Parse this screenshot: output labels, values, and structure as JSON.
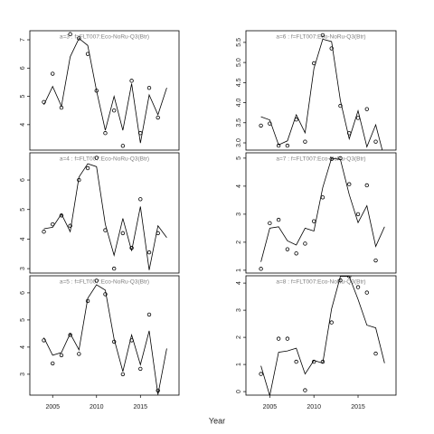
{
  "x_label": "Year",
  "chart_data": [
    {
      "type": "line",
      "title": "a=3  :  f=FLT007:Eco-NoRu-Q3(Btr)",
      "x": [
        2004,
        2005,
        2006,
        2007,
        2008,
        2009,
        2010,
        2011,
        2012,
        2013,
        2014,
        2015,
        2016,
        2017,
        2018
      ],
      "xlim": [
        2002.4,
        2019.4
      ],
      "ylim": [
        3.1,
        7.32
      ],
      "yticks": [
        4,
        5,
        6,
        7
      ],
      "series": [
        {
          "mode": "markers",
          "color": "#000000",
          "values": [
            4.8,
            5.8,
            4.6,
            7.2,
            7.05,
            6.5,
            5.2,
            3.7,
            4.5,
            3.25,
            5.55,
            3.7,
            5.3,
            4.25,
            null
          ]
        },
        {
          "mode": "line",
          "color": "#000000",
          "values": [
            4.7,
            5.35,
            4.65,
            6.4,
            7.05,
            6.8,
            5.2,
            3.8,
            5.0,
            3.8,
            5.45,
            3.35,
            5.05,
            4.35,
            5.3
          ]
        }
      ]
    },
    {
      "type": "line",
      "title": "a=4  :  f=FLT007:Eco-NoRu-Q3(Btr)",
      "x": [
        2004,
        2005,
        2006,
        2007,
        2008,
        2009,
        2010,
        2011,
        2012,
        2013,
        2014,
        2015,
        2016,
        2017,
        2018
      ],
      "xlim": [
        2002.4,
        2019.4
      ],
      "ylim": [
        2.85,
        6.92
      ],
      "yticks": [
        3,
        4,
        5,
        6
      ],
      "series": [
        {
          "mode": "markers",
          "color": "#000000",
          "values": [
            4.25,
            4.5,
            4.8,
            4.45,
            6.0,
            6.4,
            6.75,
            4.3,
            3.0,
            4.2,
            3.7,
            5.35,
            3.55,
            4.2,
            null
          ]
        },
        {
          "mode": "line",
          "color": "#000000",
          "values": [
            4.35,
            4.4,
            4.85,
            4.25,
            6.1,
            6.55,
            6.45,
            4.5,
            3.45,
            4.7,
            3.6,
            5.1,
            2.95,
            4.45,
            4.05
          ]
        }
      ]
    },
    {
      "type": "line",
      "title": "a=5  :  f=FLT007:Eco-NoRu-Q3(Btr)",
      "x": [
        2004,
        2005,
        2006,
        2007,
        2008,
        2009,
        2010,
        2011,
        2012,
        2013,
        2014,
        2015,
        2016,
        2017,
        2018
      ],
      "xlim": [
        2002.4,
        2019.4
      ],
      "xticks": [
        2005,
        2010,
        2015
      ],
      "ylim": [
        2.23,
        6.63
      ],
      "yticks": [
        3,
        4,
        5,
        6
      ],
      "series": [
        {
          "mode": "markers",
          "color": "#000000",
          "values": [
            4.25,
            3.4,
            3.7,
            4.45,
            3.75,
            5.7,
            6.45,
            5.95,
            4.2,
            3.0,
            4.25,
            3.2,
            5.2,
            2.4,
            null
          ]
        },
        {
          "mode": "line",
          "color": "#000000",
          "values": [
            4.35,
            3.7,
            3.8,
            4.5,
            3.9,
            5.8,
            6.3,
            6.1,
            4.3,
            3.1,
            4.45,
            3.35,
            4.6,
            2.25,
            3.95
          ]
        }
      ]
    },
    {
      "type": "line",
      "title": "a=6  :  f=FLT007:Eco-NoRu-Q3(Btr)",
      "x": [
        2004,
        2005,
        2006,
        2007,
        2008,
        2009,
        2010,
        2011,
        2012,
        2013,
        2014,
        2015,
        2016,
        2017,
        2018
      ],
      "xlim": [
        2002.3,
        2019.3
      ],
      "ylim": [
        2.82,
        5.79
      ],
      "yticks": [
        {
          "value": 3,
          "label": "3.0"
        },
        3.5,
        {
          "value": 4,
          "label": "4.0"
        },
        4.5,
        {
          "value": 5,
          "label": "5.0"
        },
        5.5
      ],
      "series": [
        {
          "mode": "markers",
          "color": "#000000",
          "values": [
            3.43,
            3.48,
            2.93,
            2.93,
            3.58,
            3.03,
            4.98,
            5.68,
            5.35,
            3.92,
            3.24,
            3.62,
            3.84,
            3.03,
            null
          ]
        },
        {
          "mode": "line",
          "color": "#000000",
          "values": [
            3.65,
            3.57,
            2.95,
            3.05,
            3.7,
            3.25,
            4.85,
            5.58,
            5.52,
            4.05,
            3.1,
            3.8,
            2.9,
            3.45,
            2.6
          ]
        }
      ]
    },
    {
      "type": "line",
      "title": "a=7  :  f=FLT007:Eco-NoRu-Q3(Btr)",
      "x": [
        2004,
        2005,
        2006,
        2007,
        2008,
        2009,
        2010,
        2011,
        2012,
        2013,
        2014,
        2015,
        2016,
        2017,
        2018
      ],
      "xlim": [
        2002.3,
        2019.3
      ],
      "ylim": [
        0.9,
        5.19
      ],
      "yticks": [
        1,
        2,
        3,
        4,
        5
      ],
      "series": [
        {
          "mode": "markers",
          "color": "#000000",
          "values": [
            1.05,
            2.68,
            2.8,
            1.75,
            1.6,
            1.95,
            2.75,
            3.6,
            4.97,
            5.0,
            4.07,
            3.0,
            4.03,
            1.35,
            null
          ]
        },
        {
          "mode": "line",
          "color": "#000000",
          "values": [
            1.3,
            2.5,
            2.55,
            2.05,
            1.9,
            2.5,
            2.4,
            3.95,
            5.0,
            4.95,
            3.7,
            2.7,
            3.3,
            1.85,
            2.55
          ]
        }
      ]
    },
    {
      "type": "line",
      "title": "a=8  :  f=FLT007:Eco-NoRu-Q3(Btr)",
      "x": [
        2004,
        2005,
        2006,
        2007,
        2008,
        2009,
        2010,
        2011,
        2012,
        2013,
        2014,
        2015,
        2016,
        2017,
        2018
      ],
      "xlim": [
        2002.3,
        2019.3
      ],
      "xticks": [
        2005,
        2010,
        2015
      ],
      "ylim": [
        -0.13,
        4.27
      ],
      "yticks": [
        0,
        1,
        2,
        3,
        4
      ],
      "series": [
        {
          "mode": "markers",
          "color": "#000000",
          "values": [
            0.65,
            null,
            1.95,
            1.95,
            1.1,
            0.05,
            1.1,
            1.1,
            2.55,
            4.1,
            4.25,
            3.85,
            3.65,
            1.4,
            null
          ]
        },
        {
          "mode": "line",
          "color": "#000000",
          "values": [
            0.95,
            -0.15,
            1.45,
            1.5,
            1.6,
            0.65,
            1.15,
            1.05,
            3.05,
            4.25,
            4.25,
            3.4,
            2.45,
            2.35,
            1.05
          ]
        }
      ]
    }
  ]
}
